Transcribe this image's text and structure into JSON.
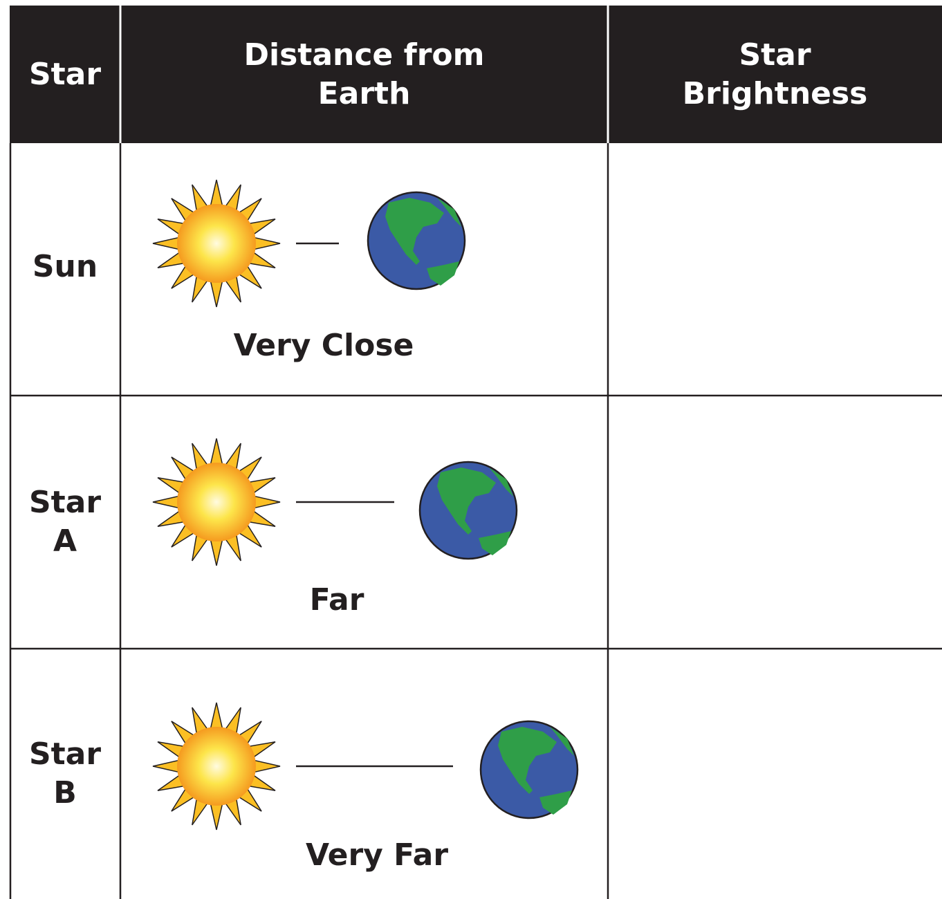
{
  "table": {
    "header": [
      "Star",
      "Distance from Earth",
      "Star Brightness"
    ],
    "rows": [
      {
        "star": "Sun",
        "distance": "Very Close"
      },
      {
        "star": "Star A",
        "distance": "Far"
      },
      {
        "star": "Star B",
        "distance": "Very Far"
      }
    ]
  }
}
